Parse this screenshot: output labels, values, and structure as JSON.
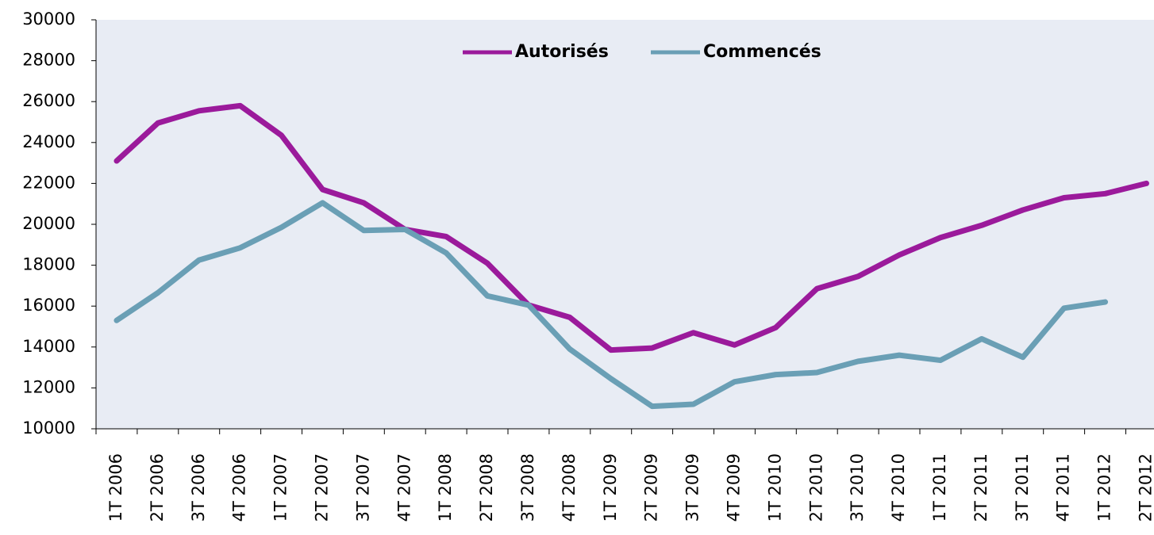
{
  "chart_data": {
    "type": "line",
    "categories": [
      "1T 2006",
      "2T 2006",
      "3T 2006",
      "4T 2006",
      "1T 2007",
      "2T 2007",
      "3T 2007",
      "4T 2007",
      "1T 2008",
      "2T 2008",
      "3T 2008",
      "4T 2008",
      "1T 2009",
      "2T 2009",
      "3T 2009",
      "4T 2009",
      "1T 2010",
      "2T 2010",
      "3T 2010",
      "4T 2010",
      "1T 2011",
      "2T 2011",
      "3T 2011",
      "4T 2011",
      "1T 2012",
      "2T 2012"
    ],
    "series": [
      {
        "name": "Autorisés",
        "color": "#9b1a9b",
        "values": [
          23100,
          24950,
          25550,
          25800,
          24350,
          21700,
          21050,
          19750,
          19400,
          18100,
          16050,
          15450,
          13850,
          13950,
          14700,
          14100,
          14950,
          16850,
          17450,
          18500,
          19350,
          19950,
          20700,
          21300,
          21500,
          22000
        ]
      },
      {
        "name": "Commencés",
        "color": "#6a9fb5",
        "values": [
          15300,
          16650,
          18250,
          18850,
          19850,
          21050,
          19700,
          19750,
          18600,
          16500,
          16050,
          13900,
          12450,
          11100,
          11200,
          12300,
          12650,
          12750,
          13300,
          13600,
          13350,
          14400,
          13500,
          15900,
          16200,
          null
        ]
      }
    ],
    "ylim": [
      10000,
      30000
    ],
    "yticks": [
      10000,
      12000,
      14000,
      16000,
      18000,
      20000,
      22000,
      24000,
      26000,
      28000,
      30000
    ],
    "legend": "top",
    "grid": false
  }
}
